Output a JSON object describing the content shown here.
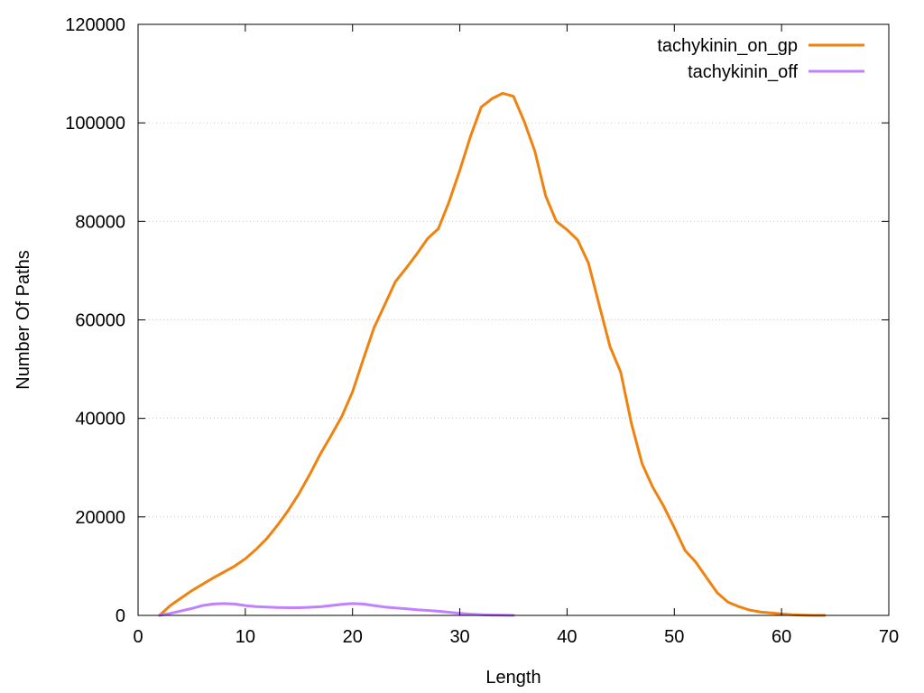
{
  "chart_data": {
    "type": "line",
    "title": "",
    "xlabel": "Length",
    "ylabel": "Number Of Paths",
    "xlim": [
      0,
      70
    ],
    "ylim": [
      0,
      120000
    ],
    "x_ticks": [
      0,
      10,
      20,
      30,
      40,
      50,
      60,
      70
    ],
    "y_ticks": [
      0,
      20000,
      40000,
      60000,
      80000,
      100000,
      120000
    ],
    "grid": "horizontal dotted",
    "legend_position": "top-right",
    "series": [
      {
        "name": "tachykinin_on_gp",
        "color": "#f0820f",
        "x": [
          2,
          3,
          4,
          5,
          6,
          7,
          8,
          9,
          10,
          11,
          12,
          13,
          14,
          15,
          16,
          17,
          18,
          19,
          20,
          21,
          22,
          23,
          24,
          25,
          26,
          27,
          28,
          29,
          30,
          31,
          32,
          33,
          34,
          35,
          36,
          37,
          38,
          39,
          40,
          41,
          42,
          43,
          44,
          45,
          46,
          47,
          48,
          49,
          50,
          51,
          52,
          53,
          54,
          55,
          56,
          57,
          58,
          59,
          60,
          61,
          62,
          63,
          64
        ],
        "y": [
          0,
          2000,
          3500,
          5000,
          6300,
          7600,
          8800,
          10000,
          11500,
          13400,
          15600,
          18300,
          21300,
          24700,
          28600,
          32800,
          36500,
          40400,
          45400,
          52000,
          58400,
          63100,
          67800,
          70500,
          73400,
          76500,
          78500,
          84000,
          90400,
          97300,
          103200,
          104900,
          106000,
          105400,
          100300,
          94200,
          85200,
          80000,
          78300,
          76200,
          71500,
          63000,
          54600,
          49400,
          39000,
          30800,
          26000,
          22200,
          17800,
          13200,
          10800,
          7700,
          4600,
          2700,
          1800,
          1100,
          700,
          500,
          300,
          150,
          50,
          0,
          0
        ]
      },
      {
        "name": "tachykinin_off",
        "color": "#c080ff",
        "x": [
          2,
          3,
          4,
          5,
          6,
          7,
          8,
          9,
          10,
          11,
          12,
          13,
          14,
          15,
          16,
          17,
          18,
          19,
          20,
          21,
          22,
          23,
          24,
          25,
          26,
          27,
          28,
          29,
          30,
          31,
          32,
          33,
          34,
          35
        ],
        "y": [
          0,
          400,
          900,
          1400,
          2000,
          2300,
          2400,
          2300,
          2000,
          1800,
          1700,
          1600,
          1550,
          1550,
          1650,
          1750,
          2000,
          2250,
          2400,
          2300,
          2000,
          1700,
          1500,
          1350,
          1150,
          1000,
          850,
          650,
          400,
          250,
          150,
          80,
          30,
          0
        ]
      }
    ]
  }
}
